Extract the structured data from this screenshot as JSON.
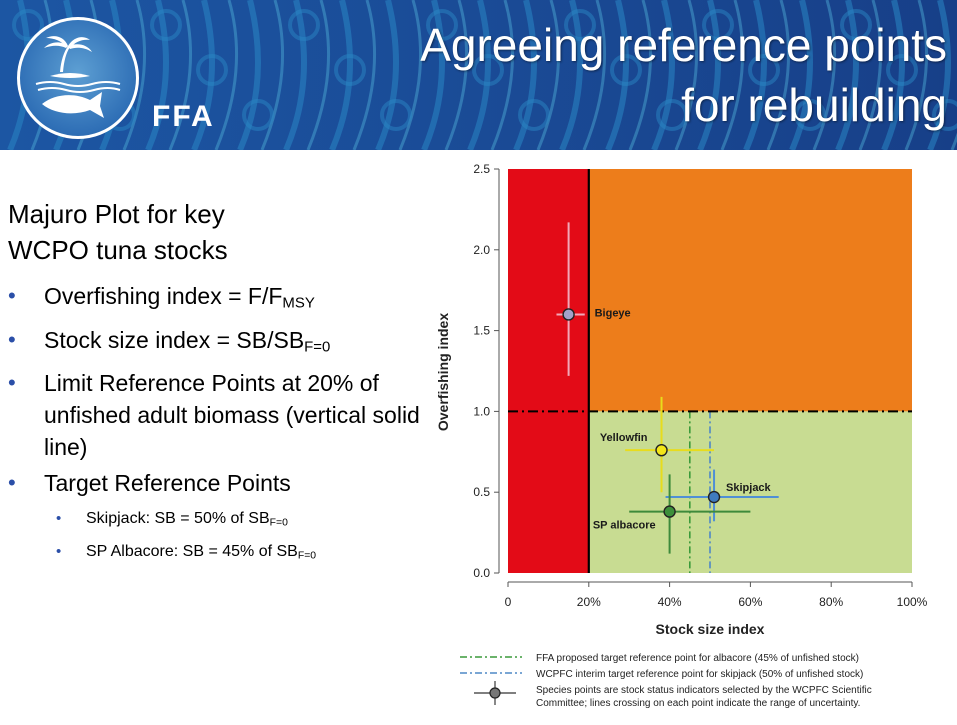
{
  "header": {
    "title_line_1": "Agreeing reference points",
    "title_line_2": "for rebuilding",
    "logo_text": "FFA",
    "colors": {
      "pattern_dark": "#173c86",
      "pattern_light": "#2a86c4",
      "pattern_accent": "#4fb0d8"
    },
    "logo_icons": [
      "palm-tree-icon",
      "tuna-fish-icon"
    ]
  },
  "left": {
    "subtitle_line_1": "Majuro Plot for key",
    "subtitle_line_2": "WCPO tuna stocks",
    "bullets": [
      {
        "text": "Overfishing index = F/F",
        "sub": "MSY"
      },
      {
        "text": "Stock size index = SB/SB",
        "sub": "F=0"
      },
      {
        "text": "Limit Reference Points at 20% of unfished adult biomass (vertical solid line)",
        "sub": ""
      },
      {
        "text": "Target Reference Points",
        "sub": ""
      }
    ],
    "subbullets": [
      {
        "text": "Skipjack: SB = 50% of SB",
        "sub": "F=0"
      },
      {
        "text": "SP Albacore: SB = 45% of SB",
        "sub": "F=0"
      }
    ]
  },
  "chart_data": {
    "type": "scatter",
    "xlabel": "Stock size index",
    "ylabel": "Overfishing index",
    "xlim": [
      0,
      1.0
    ],
    "ylim": [
      0,
      2.5
    ],
    "x_ticks": [
      0,
      0.2,
      0.4,
      0.6,
      0.8,
      1.0
    ],
    "x_tick_labels": [
      "0",
      "20%",
      "40%",
      "60%",
      "80%",
      "100%"
    ],
    "y_ticks": [
      0,
      0.5,
      1.0,
      1.5,
      2.0,
      2.5
    ],
    "y_tick_labels": [
      "0.0",
      "0.5",
      "1.0",
      "1.5",
      "2.0",
      "2.5"
    ],
    "limit_reference_point_x": 0.2,
    "overfishing_line_y": 1.0,
    "zones": {
      "red": "#e30b17",
      "orange": "#ed7d1b",
      "green": "#c8dc92"
    },
    "reference_lines": [
      {
        "x": 0.45,
        "color": "#3a9a3a",
        "style": "dash-dot"
      },
      {
        "x": 0.5,
        "color": "#4f88c6",
        "style": "dash-dot"
      }
    ],
    "points": [
      {
        "name": "Bigeye",
        "x": 0.15,
        "y": 1.6,
        "x_range": [
          0.12,
          0.19
        ],
        "y_range": [
          1.22,
          2.17
        ],
        "color": "#a4a0c8",
        "line_color": "#f2a8b8"
      },
      {
        "name": "Yellowfin",
        "x": 0.38,
        "y": 0.76,
        "x_range": [
          0.29,
          0.51
        ],
        "y_range": [
          0.5,
          1.09
        ],
        "color": "#f2e519",
        "line_color": "#e8dc1c"
      },
      {
        "name": "Skipjack",
        "x": 0.51,
        "y": 0.47,
        "x_range": [
          0.39,
          0.67
        ],
        "y_range": [
          0.32,
          0.64
        ],
        "color": "#3f7bbf",
        "line_color": "#4f8fd6"
      },
      {
        "name": "SP albacore",
        "x": 0.4,
        "y": 0.38,
        "x_range": [
          0.3,
          0.6
        ],
        "y_range": [
          0.12,
          0.61
        ],
        "color": "#3c8f3a",
        "line_color": "#3e8a3b"
      }
    ],
    "legend": [
      {
        "text": "FFA proposed target reference point for albacore (45% of unfished stock)",
        "color": "#3a9a3a",
        "kind": "dash-dot"
      },
      {
        "text": "WCPFC interim target reference point for skipjack (50% of unfished stock)",
        "color": "#4f88c6",
        "kind": "dash-dot"
      },
      {
        "text": "Species points are stock status indicators selected by the WCPFC Scientific",
        "text2": "Committee; lines crossing on each point indicate the range of uncertainty.",
        "color": "#555555",
        "kind": "point"
      }
    ]
  }
}
